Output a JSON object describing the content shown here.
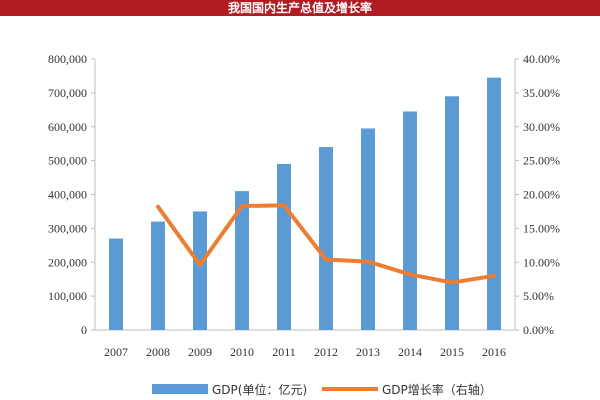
{
  "chart_data": {
    "type": "bar",
    "title": "我国国内生产总值及增长率",
    "categories": [
      "2007",
      "2008",
      "2009",
      "2010",
      "2011",
      "2012",
      "2013",
      "2014",
      "2015",
      "2016"
    ],
    "series": [
      {
        "name": "GDP(单位：亿元)",
        "type": "bar",
        "axis": "left",
        "color": "#5b9bd5",
        "values": [
          270000,
          320000,
          350000,
          410000,
          490000,
          540000,
          595000,
          645000,
          690000,
          745000
        ]
      },
      {
        "name": "GDP增长率（右轴）",
        "type": "line",
        "axis": "right",
        "color": "#ed7d31",
        "values": [
          null,
          18.2,
          9.6,
          18.3,
          18.4,
          10.4,
          10.1,
          8.2,
          7.0,
          8.0
        ]
      }
    ],
    "y_left": {
      "range": [
        0,
        800000
      ],
      "ticks": [
        "0",
        "100,000",
        "200,000",
        "300,000",
        "400,000",
        "500,000",
        "600,000",
        "700,000",
        "800,000"
      ]
    },
    "y_right": {
      "range": [
        0,
        40
      ],
      "ticks": [
        "0.00%",
        "5.00%",
        "10.00%",
        "15.00%",
        "20.00%",
        "25.00%",
        "30.00%",
        "35.00%",
        "40.00%"
      ]
    },
    "grid": false,
    "legend": "bottom"
  }
}
